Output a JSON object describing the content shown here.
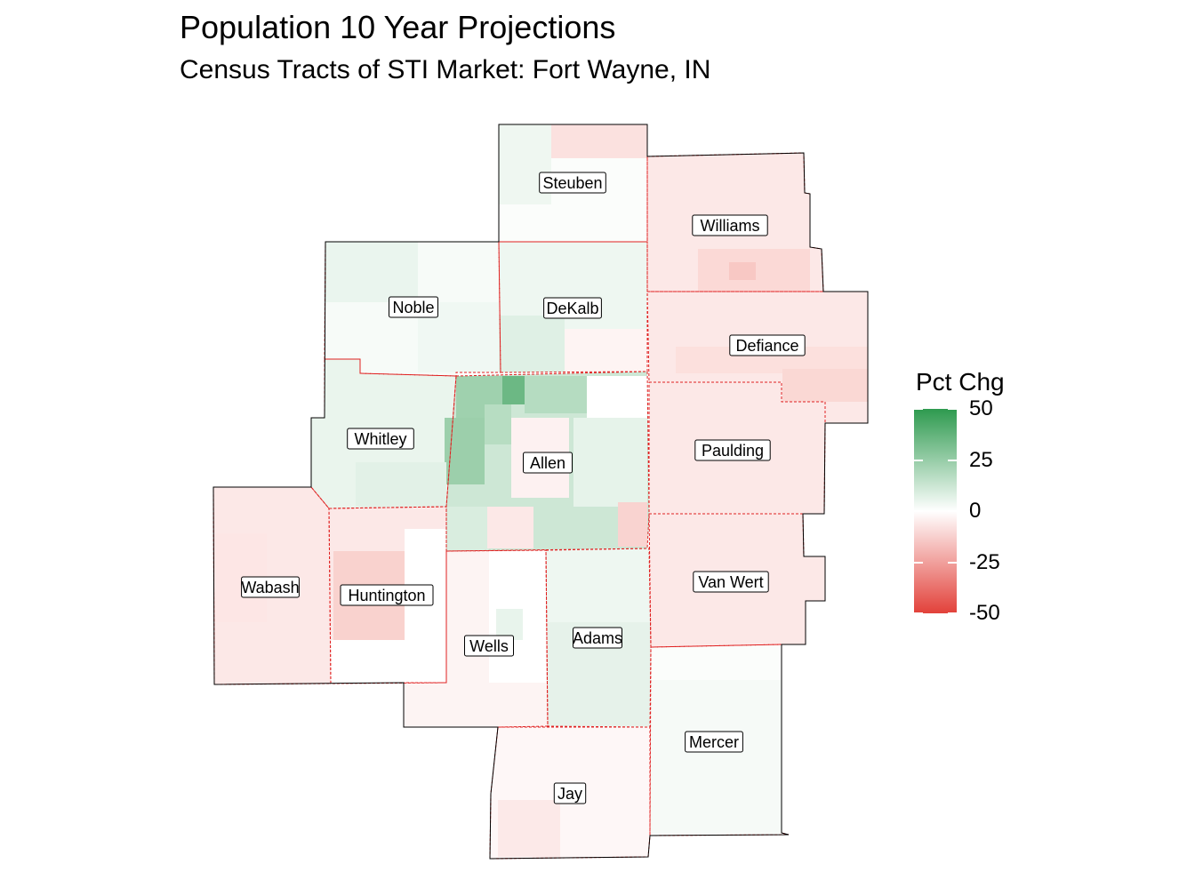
{
  "title": "Population 10 Year Projections",
  "subtitle": "Census Tracts of STI Market: Fort Wayne, IN",
  "legend": {
    "title": "Pct Chg",
    "range": [
      -50,
      50
    ],
    "ticks": [
      "50",
      "25",
      "0",
      "-25",
      "-50"
    ],
    "colors": {
      "high": "#2e9a4f",
      "mid": "#ffffff",
      "low": "#e2413a"
    }
  },
  "counties": [
    {
      "name": "Steuben",
      "pct_change": 1
    },
    {
      "name": "Williams",
      "pct_change": -6
    },
    {
      "name": "Noble",
      "pct_change": 2
    },
    {
      "name": "DeKalb",
      "pct_change": 4
    },
    {
      "name": "Defiance",
      "pct_change": -6
    },
    {
      "name": "Whitley",
      "pct_change": 5
    },
    {
      "name": "Allen",
      "pct_change": 12
    },
    {
      "name": "Paulding",
      "pct_change": -6
    },
    {
      "name": "Wabash",
      "pct_change": -6
    },
    {
      "name": "Huntington",
      "pct_change": -6
    },
    {
      "name": "Wells",
      "pct_change": -3
    },
    {
      "name": "Adams",
      "pct_change": 4
    },
    {
      "name": "Van Wert",
      "pct_change": -6
    },
    {
      "name": "Mercer",
      "pct_change": 1
    },
    {
      "name": "Jay",
      "pct_change": -2
    }
  ]
}
